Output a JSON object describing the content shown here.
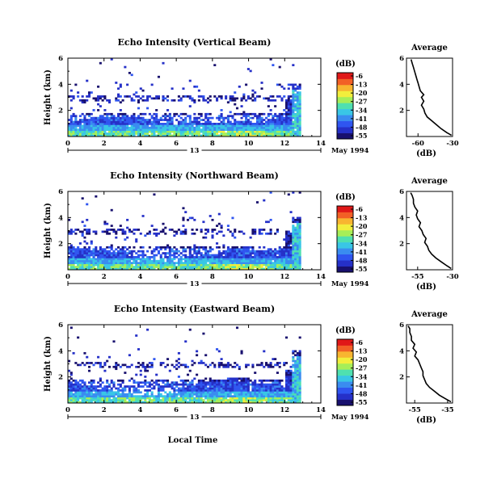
{
  "panels": [
    {
      "title": "Echo Intensity (Vertical Beam)",
      "avg_title": "Average",
      "avg_x_ticks": [
        "-60",
        "-30"
      ],
      "avg_x_range": [
        -70,
        -30
      ],
      "avg_profile": [
        [
          -31,
          0.1
        ],
        [
          -35,
          0.3
        ],
        [
          -40,
          0.6
        ],
        [
          -44,
          0.9
        ],
        [
          -48,
          1.2
        ],
        [
          -52,
          1.5
        ],
        [
          -54,
          1.8
        ],
        [
          -55,
          2.1
        ],
        [
          -57,
          2.4
        ],
        [
          -55,
          2.7
        ],
        [
          -57,
          3.0
        ],
        [
          -55,
          3.2
        ],
        [
          -58,
          3.5
        ],
        [
          -59,
          3.8
        ],
        [
          -60,
          4.1
        ],
        [
          -61,
          4.4
        ],
        [
          -62,
          4.7
        ],
        [
          -63,
          5.0
        ],
        [
          -64,
          5.3
        ],
        [
          -65,
          5.6
        ],
        [
          -66,
          5.9
        ]
      ]
    },
    {
      "title": "Echo Intensity (Northward Beam)",
      "avg_title": "Average",
      "avg_x_ticks": [
        "-55",
        "-30"
      ],
      "avg_x_range": [
        -63,
        -30
      ],
      "avg_profile": [
        [
          -31,
          0.1
        ],
        [
          -34,
          0.3
        ],
        [
          -38,
          0.6
        ],
        [
          -42,
          0.9
        ],
        [
          -45,
          1.2
        ],
        [
          -47,
          1.5
        ],
        [
          -48,
          1.8
        ],
        [
          -50,
          2.1
        ],
        [
          -49,
          2.4
        ],
        [
          -51,
          2.7
        ],
        [
          -52,
          3.0
        ],
        [
          -54,
          3.3
        ],
        [
          -53,
          3.6
        ],
        [
          -55,
          3.9
        ],
        [
          -56,
          4.2
        ],
        [
          -55,
          4.5
        ],
        [
          -57,
          4.8
        ],
        [
          -58,
          5.1
        ],
        [
          -58,
          5.4
        ],
        [
          -59,
          5.7
        ],
        [
          -60,
          5.9
        ]
      ]
    },
    {
      "title": "Echo Intensity (Eastward Beam)",
      "avg_title": "Average",
      "avg_x_ticks": [
        "-55",
        "-35"
      ],
      "avg_x_range": [
        -60,
        -32
      ],
      "avg_profile": [
        [
          -33,
          0.1
        ],
        [
          -36,
          0.3
        ],
        [
          -40,
          0.6
        ],
        [
          -43,
          0.9
        ],
        [
          -46,
          1.2
        ],
        [
          -48,
          1.5
        ],
        [
          -49,
          1.8
        ],
        [
          -50,
          2.1
        ],
        [
          -50,
          2.4
        ],
        [
          -51,
          2.7
        ],
        [
          -52,
          3.0
        ],
        [
          -53,
          3.3
        ],
        [
          -55,
          3.6
        ],
        [
          -54,
          3.9
        ],
        [
          -56,
          4.2
        ],
        [
          -55,
          4.5
        ],
        [
          -57,
          4.8
        ],
        [
          -57,
          5.1
        ],
        [
          -58,
          5.4
        ],
        [
          -58,
          5.7
        ],
        [
          -59,
          5.9
        ]
      ]
    }
  ],
  "chart_data": {
    "type": "heatmap",
    "x_ticks": [
      "0",
      "2",
      "4",
      "6",
      "8",
      "10",
      "12",
      "14"
    ],
    "xlim": [
      0,
      14
    ],
    "y_ticks": [
      "6",
      "4",
      "2"
    ],
    "ylim": [
      0,
      6
    ],
    "ylabel": "Height (km)",
    "xlabel": "Local Time",
    "day_label": "13",
    "date_label": "May 1994",
    "colorbar_unit": "(dB)",
    "colorbar_ticks": [
      "-6",
      "-13",
      "-20",
      "-27",
      "-34",
      "-41",
      "-48",
      "-55"
    ],
    "avg_xlabel": "(dB)"
  },
  "colors": {
    "scale": [
      "#18106e",
      "#2530c8",
      "#2f55f0",
      "#3a8cf0",
      "#39c6e6",
      "#4fe0b0",
      "#a6ee58",
      "#f2ee3c",
      "#f8b530",
      "#f26026",
      "#e01818"
    ]
  }
}
